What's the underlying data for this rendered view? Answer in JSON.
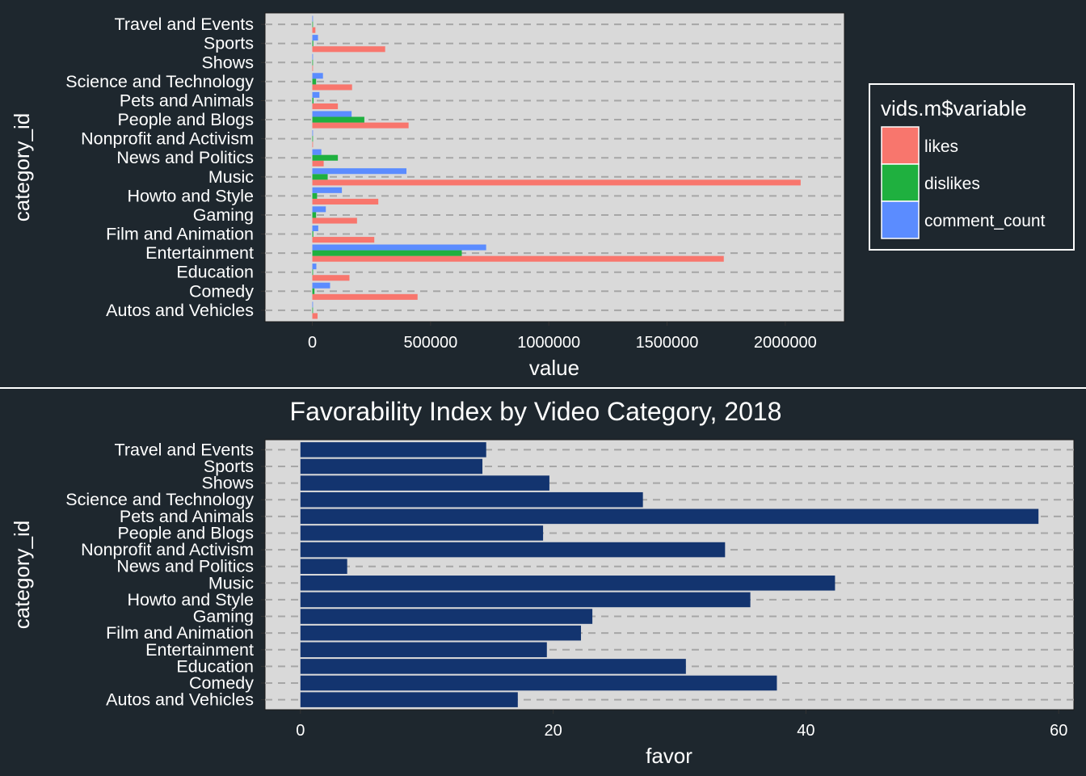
{
  "theme": {
    "background": "#1e272e",
    "panel": "#d9d9d9",
    "text": "#ffffff",
    "grid": "#a6a6a6",
    "likes": "#f8766d",
    "dislikes": "#1fb03f",
    "comment_count": "#5b8cff",
    "favor_bar": "#13346f"
  },
  "chart_data": [
    {
      "type": "bar",
      "orientation": "horizontal",
      "title": "",
      "xlabel": "value",
      "ylabel": "category_id",
      "legend": {
        "title": "vids.m$variable",
        "position": "right"
      },
      "xlim": [
        -200000,
        2250000
      ],
      "xticks": [
        0,
        500000,
        1000000,
        1500000,
        2000000
      ],
      "xtick_labels": [
        "0",
        "500000",
        "1000000",
        "1500000",
        "2000000"
      ],
      "grid": "dashed horizontal",
      "categories": [
        "Autos and Vehicles",
        "Comedy",
        "Education",
        "Entertainment",
        "Film and Animation",
        "Gaming",
        "Howto and Style",
        "Music",
        "News and Politics",
        "Nonprofit and Activism",
        "People and Blogs",
        "Pets and Animals",
        "Science and Technology",
        "Shows",
        "Sports",
        "Travel and Events"
      ],
      "series": [
        {
          "name": "likes",
          "values": [
            22000,
            445000,
            157000,
            1740000,
            262000,
            189000,
            279000,
            2065000,
            48000,
            2000,
            407000,
            108000,
            168000,
            1000,
            308000,
            13000
          ]
        },
        {
          "name": "dislikes",
          "values": [
            1500,
            9000,
            3000,
            632000,
            4000,
            16000,
            20000,
            65000,
            108000,
            500,
            220000,
            5000,
            16000,
            200,
            4000,
            900
          ]
        },
        {
          "name": "comment_count",
          "values": [
            2500,
            75000,
            17000,
            735000,
            25000,
            57000,
            125000,
            398000,
            38000,
            600,
            166000,
            30000,
            45000,
            400,
            24000,
            2000
          ]
        }
      ]
    },
    {
      "type": "bar",
      "orientation": "horizontal",
      "title": "Favorability Index by Video Category, 2018",
      "xlabel": "favor",
      "ylabel": "category_id",
      "xlim": [
        -2.8,
        61.2
      ],
      "xticks": [
        0,
        20,
        40,
        60
      ],
      "xtick_labels": [
        "0",
        "20",
        "40",
        "60"
      ],
      "grid": "dashed horizontal",
      "categories": [
        "Autos and Vehicles",
        "Comedy",
        "Education",
        "Entertainment",
        "Film and Animation",
        "Gaming",
        "Howto and Style",
        "Music",
        "News and Politics",
        "Nonprofit and Activism",
        "People and Blogs",
        "Pets and Animals",
        "Science and Technology",
        "Shows",
        "Sports",
        "Travel and Events"
      ],
      "values": [
        17.2,
        37.7,
        30.5,
        19.5,
        22.2,
        23.1,
        35.6,
        42.3,
        3.7,
        33.6,
        19.2,
        58.4,
        27.1,
        19.7,
        14.4,
        14.7
      ]
    }
  ]
}
